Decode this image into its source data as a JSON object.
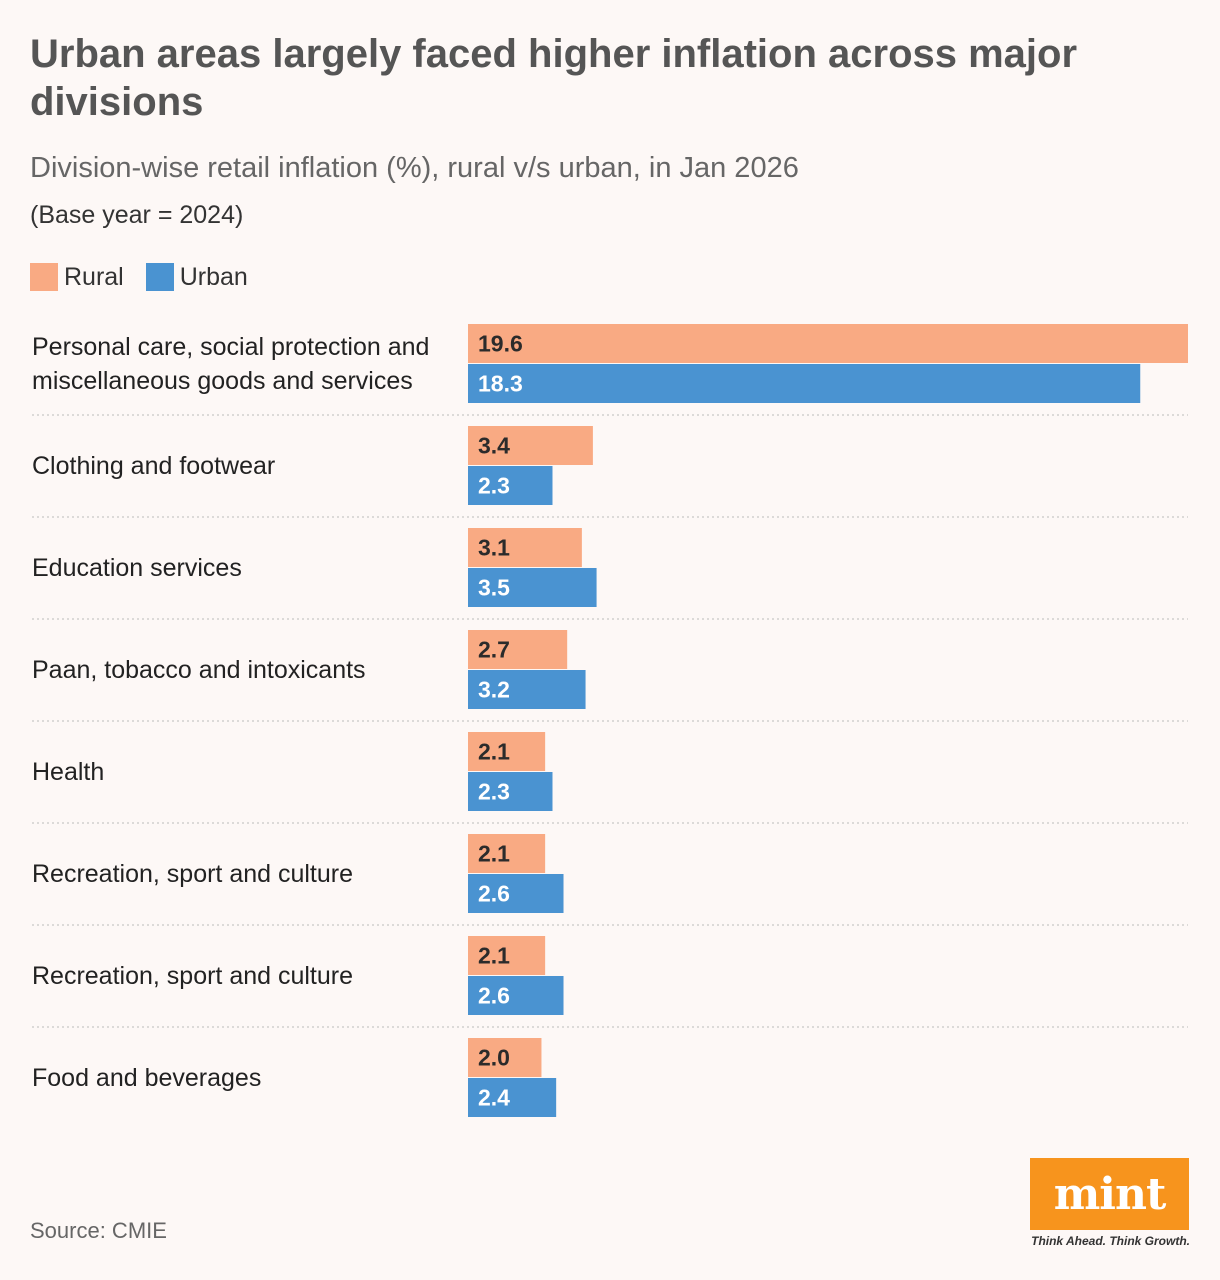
{
  "chart_data": {
    "type": "bar",
    "orientation": "horizontal",
    "title": "Urban areas largely faced higher inflation across major divisions",
    "subtitle": "Division-wise retail inflation (%), rural v/s urban, in Jan 2026",
    "note": "(Base year = 2024)",
    "categories": [
      "Personal care, social protection and miscellaneous goods and services",
      "Clothing and footwear",
      "Education services",
      "Paan, tobacco and intoxicants",
      "Health",
      "Recreation, sport and culture",
      "Recreation, sport and culture",
      "Food and beverages"
    ],
    "series": [
      {
        "name": "Rural",
        "color": "#f9aa83",
        "values": [
          19.6,
          3.4,
          3.1,
          2.7,
          2.1,
          2.1,
          2.1,
          2.0
        ],
        "labels": [
          "19.6",
          "3.4",
          "3.1",
          "2.7",
          "2.1",
          "2.1",
          "2.1",
          "2.0"
        ]
      },
      {
        "name": "Urban",
        "color": "#4a93d1",
        "values": [
          18.3,
          2.3,
          3.5,
          3.2,
          2.3,
          2.6,
          2.6,
          2.4
        ],
        "labels": [
          "18.3",
          "2.3",
          "3.5",
          "3.2",
          "2.3",
          "2.6",
          "2.6",
          "2.4"
        ]
      }
    ],
    "xlim": [
      0,
      19.6
    ],
    "grid": false,
    "legend": "top-left"
  },
  "source": "Source: CMIE",
  "logo": {
    "name": "mint",
    "tagline": "Think Ahead. Think Growth."
  },
  "colors": {
    "background": "#fdf8f6",
    "rural": "#f9aa83",
    "urban": "#4a93d1",
    "logo": "#f7941d"
  }
}
